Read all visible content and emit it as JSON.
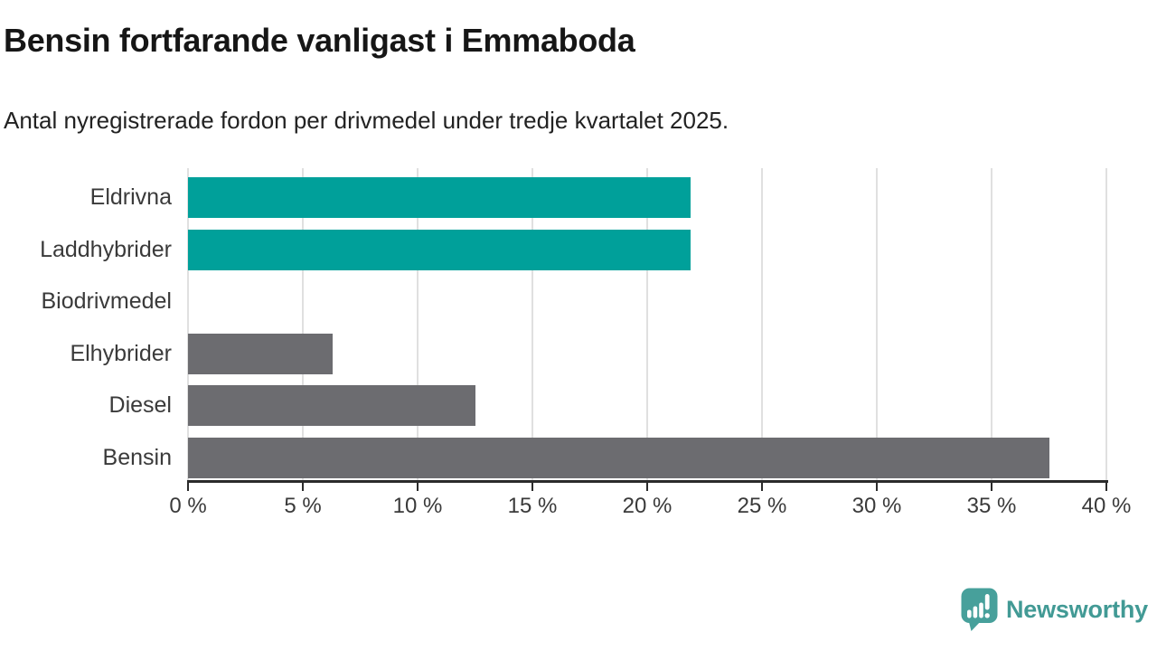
{
  "header": {
    "title": "Bensin fortfarande vanligast i Emmaboda",
    "subtitle": "Antal nyregistrerade fordon per drivmedel under tredje kvartalet 2025."
  },
  "chart_data": {
    "type": "bar",
    "orientation": "horizontal",
    "title": "Bensin fortfarande vanligast i Emmaboda",
    "subtitle": "Antal nyregistrerade fordon per drivmedel under tredje kvartalet 2025.",
    "categories": [
      "Eldrivna",
      "Laddhybrider",
      "Biodrivmedel",
      "Elhybrider",
      "Diesel",
      "Bensin"
    ],
    "values": [
      21.9,
      21.9,
      0,
      6.3,
      12.5,
      37.5
    ],
    "unit": "%",
    "xlabel": "",
    "ylabel": "",
    "xlim": [
      0,
      40
    ],
    "xticks": [
      0,
      5,
      10,
      15,
      20,
      25,
      30,
      35,
      40
    ],
    "xtick_labels": [
      "0 %",
      "5 %",
      "10 %",
      "15 %",
      "20 %",
      "25 %",
      "30 %",
      "35 %",
      "40 %"
    ],
    "bar_colors": [
      "#00a09a",
      "#00a09a",
      "#6c6c70",
      "#6c6c70",
      "#6c6c70",
      "#6c6c70"
    ],
    "highlight_color": "#00a09a",
    "default_color": "#6c6c70",
    "grid": "vertical",
    "gridline_color": "#e0e0e0",
    "axis_color": "#2b2b2b",
    "legend": "none"
  },
  "footer": {
    "brand": "Newsworthy",
    "brand_color": "#429a95",
    "logo_icon": "newsworthy-speech-bubble-bar-chart-icon"
  }
}
